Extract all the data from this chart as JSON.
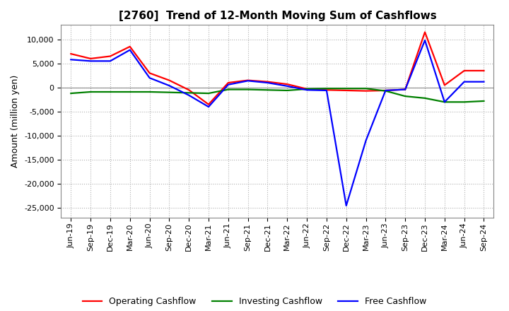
{
  "title": "[2760]  Trend of 12-Month Moving Sum of Cashflows",
  "ylabel": "Amount (million yen)",
  "ylim": [
    -27000,
    13000
  ],
  "yticks": [
    -25000,
    -20000,
    -15000,
    -10000,
    -5000,
    0,
    5000,
    10000
  ],
  "legend_labels": [
    "Operating Cashflow",
    "Investing Cashflow",
    "Free Cashflow"
  ],
  "legend_colors": [
    "#ff0000",
    "#008000",
    "#0000ff"
  ],
  "x_labels": [
    "Jun-19",
    "Sep-19",
    "Dec-19",
    "Mar-20",
    "Jun-20",
    "Sep-20",
    "Dec-20",
    "Mar-21",
    "Jun-21",
    "Sep-21",
    "Dec-21",
    "Mar-22",
    "Jun-22",
    "Sep-22",
    "Dec-22",
    "Mar-23",
    "Jun-23",
    "Sep-23",
    "Dec-23",
    "Mar-24",
    "Jun-24",
    "Sep-24"
  ],
  "operating": [
    7000,
    6000,
    6500,
    8500,
    3000,
    1500,
    -500,
    -3500,
    1000,
    1500,
    1200,
    700,
    -300,
    -500,
    -600,
    -700,
    -600,
    -400,
    11500,
    500,
    3500,
    3500
  ],
  "investing": [
    -1200,
    -900,
    -900,
    -900,
    -900,
    -1000,
    -1100,
    -1200,
    -400,
    -400,
    -500,
    -600,
    -300,
    -200,
    -200,
    -200,
    -700,
    -1800,
    -2200,
    -3000,
    -3000,
    -2800
  ],
  "free": [
    5800,
    5500,
    5500,
    7800,
    2000,
    400,
    -1600,
    -4000,
    600,
    1400,
    1000,
    300,
    -500,
    -600,
    -24500,
    -11000,
    -600,
    -400,
    9800,
    -3000,
    1200,
    1200
  ],
  "background_color": "#ffffff",
  "grid_color": "#b0b0b0",
  "line_width": 1.6,
  "title_fontsize": 11,
  "tick_fontsize": 8,
  "ylabel_fontsize": 9
}
